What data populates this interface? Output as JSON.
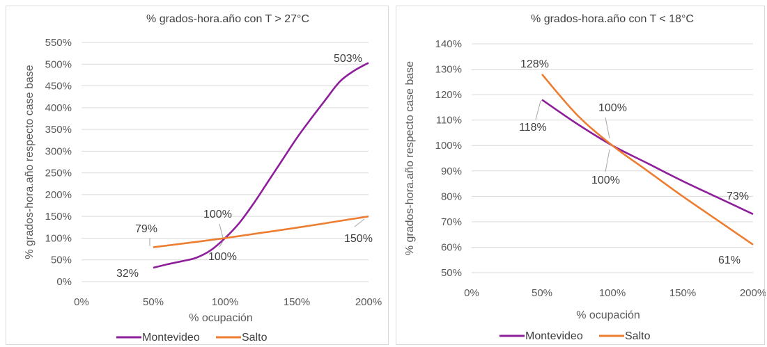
{
  "chart_data": [
    {
      "type": "line",
      "title": "% grados-hora.año con T > 27°C",
      "xlabel": "% ocupación",
      "ylabel": "% grados-hora.año respecto case base",
      "x_ticks": [
        "0%",
        "50%",
        "100%",
        "150%",
        "200%"
      ],
      "y_ticks": [
        "0%",
        "50%",
        "100%",
        "150%",
        "200%",
        "250%",
        "300%",
        "350%",
        "400%",
        "450%",
        "500%",
        "550%"
      ],
      "xlim": [
        0,
        200
      ],
      "ylim": [
        0,
        550
      ],
      "grid": true,
      "legend_position": "bottom",
      "series": [
        {
          "name": "Montevideo",
          "color": "#8e1f9b",
          "x": [
            50,
            60,
            70,
            80,
            90,
            100,
            110,
            120,
            130,
            140,
            150,
            160,
            170,
            180,
            190,
            200
          ],
          "y": [
            32,
            40,
            47,
            55,
            72,
            100,
            135,
            180,
            230,
            280,
            330,
            375,
            418,
            460,
            485,
            503
          ]
        },
        {
          "name": "Salto",
          "color": "#ed7d31",
          "x": [
            50,
            100,
            150,
            200
          ],
          "y": [
            79,
            100,
            124,
            150
          ]
        }
      ],
      "data_labels": [
        {
          "text": "503%",
          "x": 200,
          "y": 503
        },
        {
          "text": "79%",
          "x": 50,
          "y": 79
        },
        {
          "text": "32%",
          "x": 50,
          "y": 32
        },
        {
          "text": "100%",
          "x": 100,
          "y": 100
        },
        {
          "text": "100%",
          "x": 100,
          "y": 100
        },
        {
          "text": "150%",
          "x": 200,
          "y": 150
        }
      ]
    },
    {
      "type": "line",
      "title": "% grados-hora.año con T < 18°C",
      "xlabel": "% ocupación",
      "ylabel": "% grados-hora.año respecto case base",
      "x_ticks": [
        "0%",
        "50%",
        "100%",
        "150%",
        "200%"
      ],
      "y_ticks": [
        "50%",
        "60%",
        "70%",
        "80%",
        "90%",
        "100%",
        "110%",
        "120%",
        "130%",
        "140%"
      ],
      "xlim": [
        0,
        200
      ],
      "ylim": [
        50,
        140
      ],
      "grid": true,
      "legend_position": "bottom",
      "series": [
        {
          "name": "Montevideo",
          "color": "#8e1f9b",
          "x": [
            50,
            75,
            100,
            125,
            150,
            175,
            200
          ],
          "y": [
            118,
            108.5,
            100,
            93,
            86,
            79.5,
            73
          ]
        },
        {
          "name": "Salto",
          "color": "#ed7d31",
          "x": [
            50,
            75,
            100,
            125,
            150,
            175,
            200
          ],
          "y": [
            128,
            112,
            100,
            90,
            80,
            70.5,
            61
          ]
        }
      ],
      "data_labels": [
        {
          "text": "128%",
          "x": 50,
          "y": 128
        },
        {
          "text": "118%",
          "x": 50,
          "y": 118
        },
        {
          "text": "100%",
          "x": 100,
          "y": 100
        },
        {
          "text": "100%",
          "x": 100,
          "y": 100
        },
        {
          "text": "73%",
          "x": 200,
          "y": 73
        },
        {
          "text": "61%",
          "x": 200,
          "y": 61
        }
      ]
    }
  ]
}
